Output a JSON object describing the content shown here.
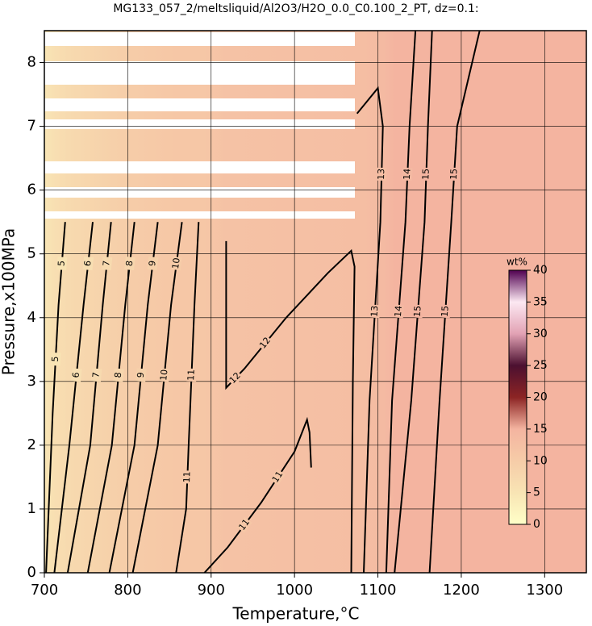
{
  "chart_data": {
    "type": "contour",
    "title": "MG133_057_2/meltsliquid/Al2O3/H2O_0.0_C0.100_2_PT, dz=0.1:",
    "xlabel": "Temperature,°C",
    "ylabel": "Pressure,x100MPa",
    "xlim": [
      700,
      1350
    ],
    "ylim": [
      0,
      8.5
    ],
    "xticks": [
      700,
      800,
      900,
      1000,
      1100,
      1200,
      1300
    ],
    "yticks": [
      0,
      1,
      2,
      3,
      4,
      5,
      6,
      7,
      8
    ],
    "grid": true,
    "colorbar": {
      "label": "wt%",
      "lim": [
        0,
        40
      ],
      "ticks": [
        0,
        5,
        10,
        15,
        20,
        25,
        30,
        35,
        40
      ],
      "colors": [
        "#ffffc8",
        "#f8e4b4",
        "#f6cca8",
        "#f4b4a0",
        "#8c2424",
        "#4c1030",
        "#e2a2b4",
        "#fce8f2",
        "#500050"
      ]
    },
    "contours": [
      {
        "level": 5,
        "x": [
          702,
          710,
          717,
          725
        ],
        "y": [
          0,
          2.5,
          4.2,
          5.5
        ]
      },
      {
        "level": 6,
        "x": [
          712,
          730,
          747,
          758
        ],
        "y": [
          0,
          2,
          4.2,
          5.5
        ]
      },
      {
        "level": 7,
        "x": [
          728,
          755,
          770,
          780
        ],
        "y": [
          0,
          2,
          4.2,
          5.5
        ]
      },
      {
        "level": 8,
        "x": [
          752,
          781,
          797,
          808
        ],
        "y": [
          0,
          2,
          4.2,
          5.5
        ]
      },
      {
        "level": 9,
        "x": [
          778,
          808,
          824,
          836
        ],
        "y": [
          0,
          2,
          4.2,
          5.5
        ]
      },
      {
        "level": 10,
        "x": [
          806,
          836,
          852,
          865
        ],
        "y": [
          0,
          2,
          4.2,
          5.5
        ]
      },
      {
        "level": 11,
        "x": [
          858,
          870,
          873,
          880,
          885
        ],
        "y": [
          0,
          1,
          2,
          4.2,
          5.5
        ]
      },
      {
        "level": 11,
        "x": [
          892,
          920,
          960,
          1000,
          1015,
          1018,
          1020
        ],
        "y": [
          0,
          0.4,
          1.1,
          1.9,
          2.4,
          2.2,
          1.65
        ]
      },
      {
        "level": 12,
        "x": [
          918,
          918,
          940,
          990,
          1040,
          1068,
          1072,
          1070,
          1068
        ],
        "y": [
          5.2,
          2.9,
          3.2,
          4.0,
          4.7,
          5.05,
          4.8,
          3.0,
          0
        ]
      },
      {
        "level": 13,
        "x": [
          1083,
          1090,
          1103,
          1106,
          1100,
          1075
        ],
        "y": [
          0,
          2.7,
          5.5,
          7,
          7.6,
          7.2
        ]
      },
      {
        "level": 14,
        "x": [
          1110,
          1117,
          1133,
          1138,
          1145
        ],
        "y": [
          0,
          2.7,
          5.5,
          7,
          8.5
        ]
      },
      {
        "level": 15,
        "x": [
          1120,
          1140,
          1156,
          1160,
          1165
        ],
        "y": [
          0,
          2.7,
          5.5,
          7,
          8.5
        ]
      },
      {
        "level": 15,
        "x": [
          1162,
          1174,
          1188,
          1195,
          1222
        ],
        "y": [
          0,
          2.7,
          5.5,
          7,
          8.5
        ]
      }
    ]
  }
}
